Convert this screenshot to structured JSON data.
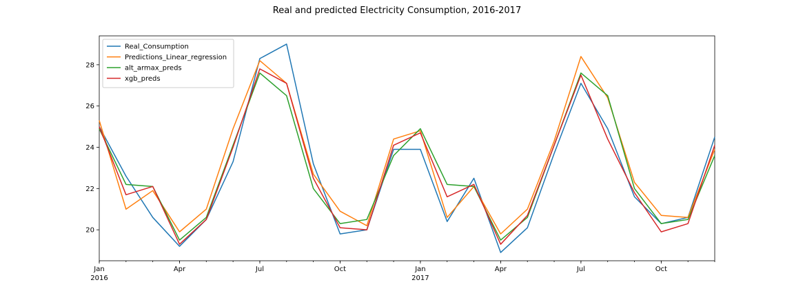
{
  "chart_data": {
    "type": "line",
    "title": "Real and predicted Electricity Consumption, 2016-2017",
    "xlabel": "",
    "ylabel": "",
    "x": [
      "2016-01",
      "2016-02",
      "2016-03",
      "2016-04",
      "2016-05",
      "2016-06",
      "2016-07",
      "2016-08",
      "2016-09",
      "2016-10",
      "2016-11",
      "2016-12",
      "2017-01",
      "2017-02",
      "2017-03",
      "2017-04",
      "2017-05",
      "2017-06",
      "2017-07",
      "2017-08",
      "2017-09",
      "2017-10",
      "2017-11",
      "2017-12"
    ],
    "xlim": [
      "2016-01",
      "2017-12"
    ],
    "ylim": [
      18.5,
      29.4
    ],
    "x_ticks_major": [
      {
        "x": "2016-01",
        "label": "Jan",
        "sublabel": "2016"
      },
      {
        "x": "2016-04",
        "label": "Apr",
        "sublabel": ""
      },
      {
        "x": "2016-07",
        "label": "Jul",
        "sublabel": ""
      },
      {
        "x": "2016-10",
        "label": "Oct",
        "sublabel": ""
      },
      {
        "x": "2017-01",
        "label": "Jan",
        "sublabel": "2017"
      },
      {
        "x": "2017-04",
        "label": "Apr",
        "sublabel": ""
      },
      {
        "x": "2017-07",
        "label": "Jul",
        "sublabel": ""
      },
      {
        "x": "2017-10",
        "label": "Oct",
        "sublabel": ""
      }
    ],
    "y_ticks": [
      20,
      22,
      24,
      26,
      28
    ],
    "grid": false,
    "legend_position": "top-left",
    "series": [
      {
        "name": "Real_Consumption",
        "color": "#1f77b4",
        "values": [
          25.0,
          22.6,
          20.6,
          19.2,
          20.5,
          23.3,
          28.3,
          29.0,
          23.2,
          19.8,
          20.0,
          23.9,
          23.9,
          20.4,
          22.5,
          18.9,
          20.1,
          23.7,
          27.1,
          24.9,
          21.6,
          20.3,
          20.6,
          24.5
        ]
      },
      {
        "name": "Predictions_Linear_regression",
        "color": "#ff7f0e",
        "values": [
          25.3,
          21.0,
          21.9,
          19.9,
          21.0,
          24.9,
          28.2,
          27.1,
          22.7,
          20.9,
          20.2,
          24.4,
          24.8,
          20.6,
          22.1,
          19.8,
          21.0,
          24.3,
          28.4,
          26.4,
          22.3,
          20.7,
          20.6,
          23.9
        ]
      },
      {
        "name": "alt_armax_preds",
        "color": "#2ca02c",
        "values": [
          24.9,
          22.2,
          22.1,
          19.5,
          20.6,
          24.1,
          27.6,
          26.5,
          22.0,
          20.3,
          20.5,
          23.6,
          24.9,
          22.2,
          22.1,
          19.5,
          20.6,
          24.1,
          27.6,
          26.5,
          22.0,
          20.3,
          20.5,
          23.6
        ]
      },
      {
        "name": "xgb_preds",
        "color": "#d62728",
        "values": [
          25.0,
          21.7,
          22.1,
          19.3,
          20.5,
          24.0,
          27.8,
          27.1,
          22.5,
          20.1,
          20.0,
          24.1,
          24.7,
          21.6,
          22.2,
          19.3,
          20.7,
          24.1,
          27.5,
          24.4,
          21.8,
          19.9,
          20.3,
          24.1
        ]
      }
    ]
  }
}
